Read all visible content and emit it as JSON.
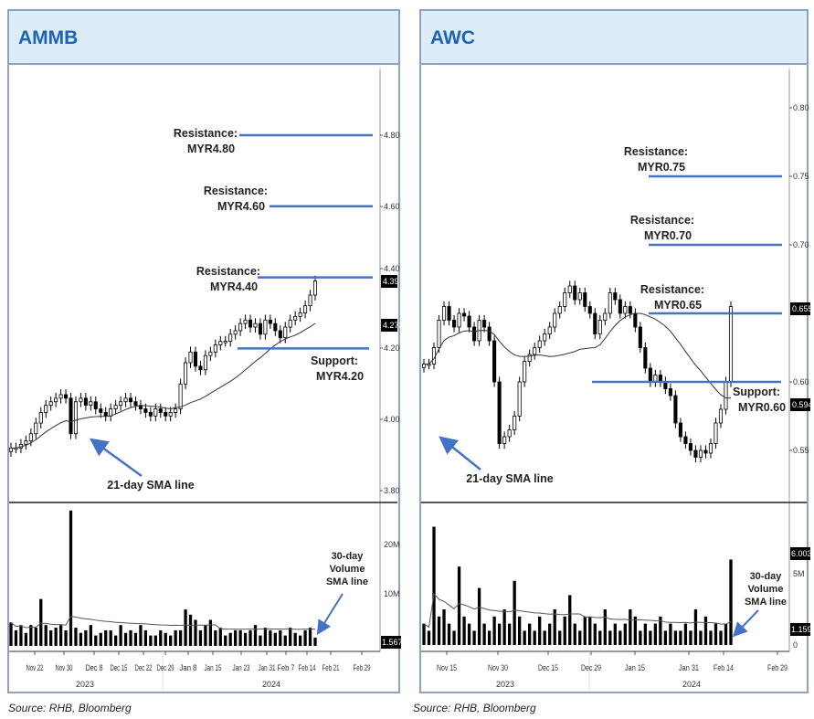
{
  "source": "Source: RHB, Bloomberg",
  "colors": {
    "accent": "#1f63b7",
    "level_line": "#4472c4",
    "header_bg": "#dcedf9",
    "border": "#8ea3bf"
  },
  "chart_data": [
    {
      "type": "candlestick",
      "title": "AMMB",
      "yticks": [
        "3.80",
        "4.00",
        "4.20",
        "4.40",
        "4.60",
        "4.80"
      ],
      "ylim": [
        3.8,
        4.8
      ],
      "last_price_labels": [
        "4.39",
        "4.273"
      ],
      "volume_ticks": [
        "10M",
        "20M"
      ],
      "volume_last_label": "1.567M",
      "x_tick_labels": [
        "Nov 22",
        "Nov 30",
        "Dec 8",
        "Dec 15",
        "Dec 22",
        "Dec 29",
        "Jan 8",
        "Jan 15",
        "Jan 23",
        "Jan 31",
        "Feb 7",
        "Feb 14",
        "Feb 21",
        "Feb 29"
      ],
      "years": [
        "2023",
        "2024"
      ],
      "close": [
        3.92,
        3.92,
        3.93,
        3.94,
        3.96,
        3.99,
        4.02,
        4.04,
        4.05,
        4.06,
        4.07,
        4.06,
        3.96,
        4.05,
        4.06,
        4.04,
        4.05,
        4.03,
        4.02,
        4.01,
        4.03,
        4.04,
        4.05,
        4.06,
        4.05,
        4.04,
        4.03,
        4.02,
        4.01,
        4.03,
        4.02,
        4.01,
        4.02,
        4.03,
        4.1,
        4.16,
        4.19,
        4.15,
        4.14,
        4.18,
        4.19,
        4.21,
        4.22,
        4.22,
        4.24,
        4.25,
        4.27,
        4.28,
        4.26,
        4.27,
        4.24,
        4.28,
        4.27,
        4.25,
        4.23,
        4.26,
        4.28,
        4.29,
        4.3,
        4.32,
        4.35,
        4.39
      ],
      "volume_millions": [
        4.5,
        3,
        4,
        2.5,
        4,
        3.5,
        9,
        4,
        3,
        3.5,
        4,
        3,
        26,
        3.5,
        2.5,
        3,
        4,
        2,
        2.5,
        3,
        3,
        2,
        4,
        2.5,
        3,
        2.5,
        4,
        3,
        2,
        2,
        3,
        2.5,
        2,
        3,
        3,
        7,
        6,
        5,
        3,
        4,
        5,
        3,
        3.5,
        2,
        2.5,
        3,
        3,
        2.5,
        3,
        4,
        2,
        3.5,
        3,
        2.5,
        3,
        2,
        3.5,
        2.5,
        2,
        3,
        3.5,
        1.6
      ],
      "levels": [
        {
          "kind": "Resistance:",
          "value": "MYR4.80",
          "price": 4.8
        },
        {
          "kind": "Resistance:",
          "value": "MYR4.60",
          "price": 4.6
        },
        {
          "kind": "Resistance:",
          "value": "MYR4.40",
          "price": 4.4
        },
        {
          "kind": "Support:",
          "value": "MYR4.20",
          "price": 4.2
        }
      ],
      "sma_label": "21-day SMA line",
      "vol_sma_label": [
        "30-day",
        "Volume",
        "SMA line"
      ]
    },
    {
      "type": "candlestick",
      "title": "AWC",
      "yticks": [
        "0.55",
        "0.60",
        "0.70",
        "0.75",
        "0.80"
      ],
      "ylim": [
        0.53,
        0.82
      ],
      "last_price_labels": [
        "0.655",
        "0.594"
      ],
      "volume_ticks": [
        "0",
        "5M"
      ],
      "volume_last_label": "1.159M",
      "volume_last_label_2": "6.003M",
      "x_tick_labels": [
        "Nov 15",
        "Nov 30",
        "Dec 15",
        "Dec 29",
        "Jan 15",
        "Jan 31",
        "Feb 14",
        "Feb 29"
      ],
      "years": [
        "2023",
        "2024"
      ],
      "close": [
        0.613,
        0.613,
        0.625,
        0.645,
        0.655,
        0.645,
        0.64,
        0.65,
        0.648,
        0.64,
        0.63,
        0.645,
        0.64,
        0.63,
        0.6,
        0.555,
        0.56,
        0.565,
        0.575,
        0.6,
        0.615,
        0.62,
        0.625,
        0.63,
        0.635,
        0.64,
        0.65,
        0.655,
        0.665,
        0.67,
        0.66,
        0.665,
        0.655,
        0.65,
        0.635,
        0.645,
        0.65,
        0.665,
        0.66,
        0.65,
        0.655,
        0.65,
        0.64,
        0.625,
        0.61,
        0.6,
        0.605,
        0.6,
        0.595,
        0.59,
        0.57,
        0.56,
        0.555,
        0.55,
        0.545,
        0.55,
        0.548,
        0.555,
        0.57,
        0.58,
        0.6,
        0.655
      ],
      "volume_millions": [
        1.5,
        1,
        8.3,
        2,
        2.5,
        1.5,
        1,
        5.5,
        2,
        1.5,
        1,
        4,
        1.5,
        1,
        2,
        1.5,
        2.5,
        1.5,
        4.5,
        2,
        1,
        1.5,
        1,
        2,
        1,
        1.5,
        2.5,
        1,
        2,
        3.5,
        1.5,
        1,
        2,
        2,
        1.5,
        1,
        2.5,
        1,
        1.5,
        1,
        1.5,
        2.5,
        2,
        1,
        1.5,
        1,
        1.5,
        2,
        1,
        1.5,
        1,
        1,
        1.5,
        1,
        2.5,
        1,
        2,
        1,
        1.5,
        1,
        1.5,
        6.0
      ],
      "levels": [
        {
          "kind": "Resistance:",
          "value": "MYR0.75",
          "price": 0.75
        },
        {
          "kind": "Resistance:",
          "value": "MYR0.70",
          "price": 0.7
        },
        {
          "kind": "Resistance:",
          "value": "MYR0.65",
          "price": 0.65
        },
        {
          "kind": "Support:",
          "value": "MYR0.60",
          "price": 0.6
        }
      ],
      "sma_label": "21-day SMA line",
      "vol_sma_label": [
        "30-day",
        "Volume",
        "SMA line"
      ]
    }
  ]
}
